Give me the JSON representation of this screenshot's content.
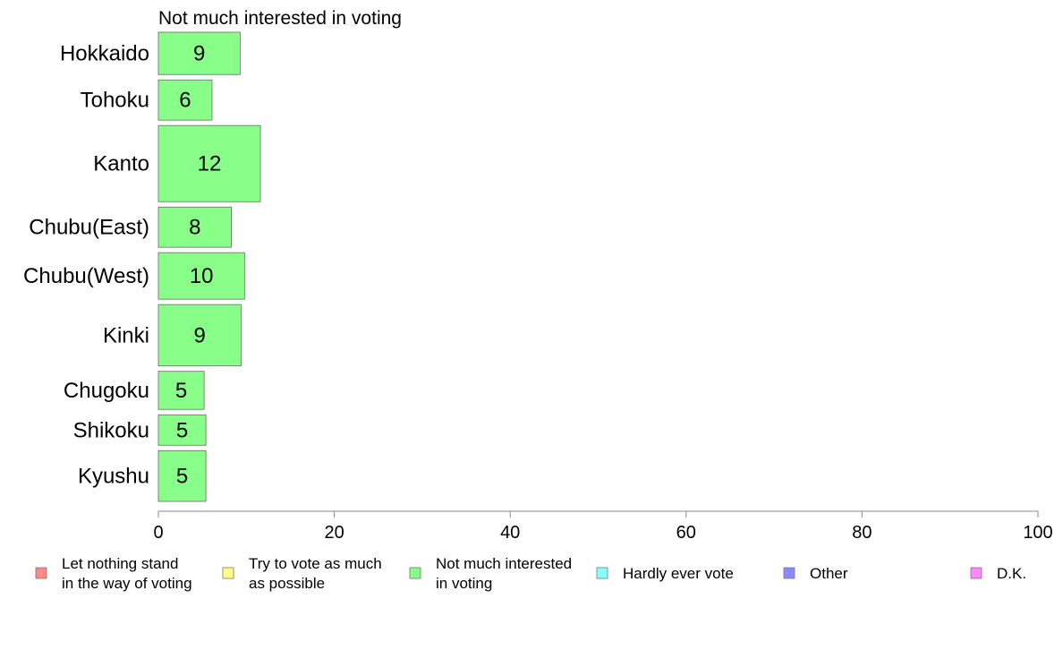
{
  "chart_data": {
    "type": "bar",
    "orientation": "horizontal",
    "title": "Not much interested in voting",
    "categories": [
      "Hokkaido",
      "Tohoku",
      "Kanto",
      "Chubu(East)",
      "Chubu(West)",
      "Kinki",
      "Chugoku",
      "Shikoku",
      "Kyushu"
    ],
    "series": [
      {
        "name": "Not much interested in voting",
        "values": [
          9.3,
          6.1,
          11.6,
          8.3,
          9.8,
          9.4,
          5.2,
          5.4,
          5.4
        ],
        "labels": [
          "9",
          "6",
          "12",
          "8",
          "10",
          "9",
          "5",
          "5",
          "5"
        ],
        "color": "#88ff88"
      }
    ],
    "bar_weights": [
      1.0,
      0.95,
      1.8,
      0.95,
      1.1,
      1.45,
      0.9,
      0.72,
      1.2
    ],
    "xlim": [
      0,
      100
    ],
    "xticks": [
      0,
      20,
      40,
      60,
      80,
      100
    ],
    "grid": false,
    "legend": {
      "position": "bottom",
      "items": [
        {
          "lines": [
            "Let nothing stand",
            "in the way of voting"
          ],
          "color": "#ff8888"
        },
        {
          "lines": [
            "Try to vote as much",
            "as possible"
          ],
          "color": "#ffff88"
        },
        {
          "lines": [
            "Not much interested",
            "in voting"
          ],
          "color": "#88ff88"
        },
        {
          "lines": [
            "Hardly ever vote"
          ],
          "color": "#88ffff"
        },
        {
          "lines": [
            "Other"
          ],
          "color": "#8888ff"
        },
        {
          "lines": [
            "D.K."
          ],
          "color": "#ff88ff"
        }
      ]
    }
  }
}
